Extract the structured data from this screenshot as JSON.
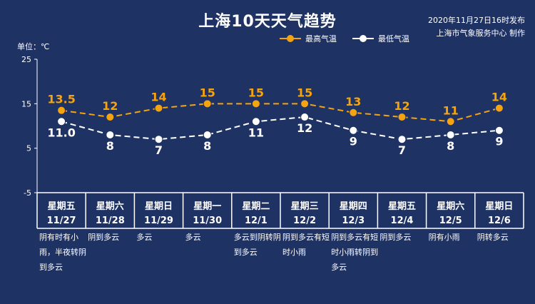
{
  "header": {
    "title": "上海10天天气趋势",
    "publish_time": "2020年11月27日16时发布",
    "publisher": "上海市气象服务中心 制作",
    "unit_label": "单位：℃"
  },
  "legend": {
    "high_label": "最高气温",
    "low_label": "最低气温"
  },
  "colors": {
    "background": "#1f3264",
    "high": "#f5a30f",
    "low": "#ffffff",
    "grid": "#ffffff"
  },
  "days": [
    {
      "weekday": "星期五",
      "date": "11/27",
      "desc": "阴有时有小雨，半夜转阴到多云",
      "high_label": "13.5",
      "low_label": "11.0"
    },
    {
      "weekday": "星期六",
      "date": "11/28",
      "desc": "阴到多云",
      "high_label": "12",
      "low_label": "8"
    },
    {
      "weekday": "星期日",
      "date": "11/29",
      "desc": "多云",
      "high_label": "14",
      "low_label": "7"
    },
    {
      "weekday": "星期一",
      "date": "11/30",
      "desc": "多云",
      "high_label": "15",
      "low_label": "8"
    },
    {
      "weekday": "星期二",
      "date": "12/1",
      "desc": "多云到阴转阴到多云",
      "high_label": "15",
      "low_label": "11"
    },
    {
      "weekday": "星期三",
      "date": "12/2",
      "desc": "阴到多云有短时小雨",
      "high_label": "15",
      "low_label": "12"
    },
    {
      "weekday": "星期四",
      "date": "12/3",
      "desc": "阴到多云有短时小雨转阴到多云",
      "high_label": "13",
      "low_label": "9"
    },
    {
      "weekday": "星期五",
      "date": "12/4",
      "desc": "阴到多云",
      "high_label": "12",
      "low_label": "7"
    },
    {
      "weekday": "星期六",
      "date": "12/5",
      "desc": "阴有小雨",
      "high_label": "11",
      "low_label": "8"
    },
    {
      "weekday": "星期日",
      "date": "12/6",
      "desc": "阴转多云",
      "high_label": "14",
      "low_label": "9"
    }
  ],
  "chart_data": {
    "type": "line",
    "categories": [
      "11/27",
      "11/28",
      "11/29",
      "11/30",
      "12/1",
      "12/2",
      "12/3",
      "12/4",
      "12/5",
      "12/6"
    ],
    "series": [
      {
        "name": "最高气温",
        "values": [
          13.5,
          12,
          14,
          15,
          15,
          15,
          13,
          12,
          11,
          14
        ],
        "color": "#f5a30f"
      },
      {
        "name": "最低气温",
        "values": [
          11.0,
          8,
          7,
          8,
          11,
          12,
          9,
          7,
          8,
          9
        ],
        "color": "#ffffff"
      }
    ],
    "ylim": [
      -5,
      25
    ],
    "yticks": [
      25,
      15,
      5,
      -5
    ],
    "line_style": "dashed",
    "grid": false
  }
}
